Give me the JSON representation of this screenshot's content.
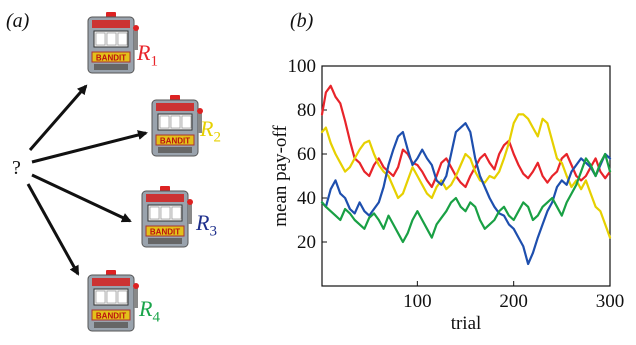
{
  "panel_a": {
    "label": "(a)",
    "chooser": "?",
    "machine_brand": "BANDIT",
    "machines": [
      {
        "name": "R",
        "sub": "1",
        "color": "#e8242a"
      },
      {
        "name": "R",
        "sub": "2",
        "color": "#e6d000"
      },
      {
        "name": "R",
        "sub": "3",
        "color": "#1e2f8c"
      },
      {
        "name": "R",
        "sub": "4",
        "color": "#19a44a"
      }
    ]
  },
  "panel_b": {
    "label": "(b)"
  },
  "chart_data": {
    "type": "line",
    "xlabel": "trial",
    "ylabel": "mean pay-off",
    "xlim": [
      1,
      300
    ],
    "ylim": [
      0,
      100
    ],
    "xticks": [
      100,
      200,
      300
    ],
    "yticks": [
      20,
      40,
      60,
      80,
      100
    ],
    "grid": false,
    "series": [
      {
        "color": "#e8242a",
        "x": [
          1,
          5,
          10,
          15,
          20,
          25,
          30,
          35,
          40,
          45,
          50,
          55,
          60,
          65,
          70,
          75,
          80,
          85,
          90,
          95,
          100,
          105,
          110,
          115,
          120,
          125,
          130,
          135,
          140,
          145,
          150,
          155,
          160,
          165,
          170,
          175,
          180,
          185,
          190,
          195,
          200,
          205,
          210,
          215,
          220,
          225,
          230,
          235,
          240,
          245,
          250,
          255,
          260,
          265,
          270,
          275,
          280,
          285,
          290,
          295,
          300
        ],
        "y": [
          78,
          88,
          91,
          86,
          83,
          75,
          66,
          58,
          56,
          52,
          50,
          55,
          58,
          54,
          52,
          50,
          54,
          62,
          60,
          56,
          55,
          52,
          48,
          45,
          50,
          56,
          58,
          54,
          50,
          47,
          45,
          50,
          54,
          58,
          60,
          56,
          53,
          60,
          64,
          66,
          60,
          55,
          51,
          49,
          52,
          56,
          50,
          47,
          50,
          52,
          58,
          60,
          55,
          50,
          48,
          50,
          54,
          58,
          52,
          49,
          52
        ]
      },
      {
        "color": "#e6d000",
        "x": [
          1,
          5,
          10,
          15,
          20,
          25,
          30,
          35,
          40,
          45,
          50,
          55,
          60,
          65,
          70,
          75,
          80,
          85,
          90,
          95,
          100,
          105,
          110,
          115,
          120,
          125,
          130,
          135,
          140,
          145,
          150,
          155,
          160,
          165,
          170,
          175,
          180,
          185,
          190,
          195,
          200,
          205,
          210,
          215,
          220,
          225,
          230,
          235,
          240,
          245,
          250,
          255,
          260,
          265,
          270,
          275,
          280,
          285,
          290,
          295,
          300
        ],
        "y": [
          70,
          72,
          65,
          60,
          56,
          52,
          54,
          58,
          62,
          65,
          66,
          60,
          55,
          52,
          50,
          45,
          40,
          42,
          48,
          54,
          50,
          46,
          42,
          40,
          45,
          48,
          44,
          46,
          50,
          55,
          60,
          58,
          52,
          48,
          47,
          50,
          49,
          52,
          58,
          65,
          74,
          78,
          78,
          76,
          72,
          68,
          76,
          74,
          66,
          58,
          56,
          50,
          45,
          48,
          44,
          48,
          42,
          36,
          34,
          28,
          22
        ]
      },
      {
        "color": "#1e4fae",
        "x": [
          1,
          5,
          10,
          15,
          20,
          25,
          30,
          35,
          40,
          45,
          50,
          55,
          60,
          65,
          70,
          75,
          80,
          85,
          90,
          95,
          100,
          105,
          110,
          115,
          120,
          125,
          130,
          135,
          140,
          145,
          150,
          155,
          160,
          165,
          170,
          175,
          180,
          185,
          190,
          195,
          200,
          205,
          210,
          215,
          220,
          225,
          230,
          235,
          240,
          245,
          250,
          255,
          260,
          265,
          270,
          275,
          280,
          285,
          290,
          295,
          300
        ],
        "y": [
          38,
          36,
          44,
          48,
          42,
          40,
          35,
          33,
          38,
          34,
          32,
          35,
          38,
          45,
          55,
          62,
          68,
          70,
          62,
          55,
          58,
          62,
          58,
          55,
          48,
          46,
          50,
          60,
          70,
          72,
          74,
          70,
          58,
          50,
          45,
          40,
          36,
          33,
          32,
          28,
          26,
          22,
          18,
          10,
          15,
          22,
          28,
          34,
          38,
          45,
          48,
          46,
          52,
          55,
          58,
          56,
          54,
          50,
          55,
          60,
          58
        ]
      },
      {
        "color": "#19a044",
        "x": [
          1,
          5,
          10,
          15,
          20,
          25,
          30,
          35,
          40,
          45,
          50,
          55,
          60,
          65,
          70,
          75,
          80,
          85,
          90,
          95,
          100,
          105,
          110,
          115,
          120,
          125,
          130,
          135,
          140,
          145,
          150,
          155,
          160,
          165,
          170,
          175,
          180,
          185,
          190,
          195,
          200,
          205,
          210,
          215,
          220,
          225,
          230,
          235,
          240,
          245,
          250,
          255,
          260,
          265,
          270,
          275,
          280,
          285,
          290,
          295,
          300
        ],
        "y": [
          38,
          36,
          34,
          32,
          30,
          35,
          33,
          30,
          28,
          26,
          31,
          33,
          30,
          26,
          32,
          28,
          24,
          20,
          24,
          30,
          34,
          30,
          26,
          22,
          28,
          31,
          34,
          38,
          40,
          36,
          34,
          38,
          36,
          30,
          26,
          28,
          30,
          34,
          36,
          32,
          30,
          34,
          38,
          36,
          30,
          32,
          36,
          38,
          40,
          36,
          32,
          38,
          42,
          46,
          52,
          58,
          55,
          50,
          56,
          60,
          52
        ]
      }
    ]
  }
}
